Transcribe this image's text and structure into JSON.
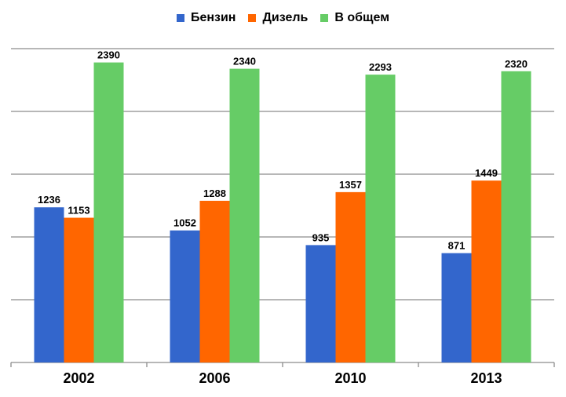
{
  "chart_data": {
    "type": "bar",
    "title": "",
    "xlabel": "",
    "ylabel": "",
    "categories": [
      "2002",
      "2006",
      "2010",
      "2013"
    ],
    "series": [
      {
        "name": "Бензин",
        "color": "#3366cc",
        "values": [
          1236,
          1052,
          935,
          871
        ]
      },
      {
        "name": "Дизель",
        "color": "#ff6600",
        "values": [
          1153,
          1288,
          1357,
          1449
        ]
      },
      {
        "name": "В общем",
        "color": "#66cc66",
        "values": [
          2390,
          2340,
          2293,
          2320
        ]
      }
    ],
    "ylim": [
      0,
      2500
    ],
    "gridlines": true,
    "legend_position": "top-center",
    "data_labels": true
  }
}
